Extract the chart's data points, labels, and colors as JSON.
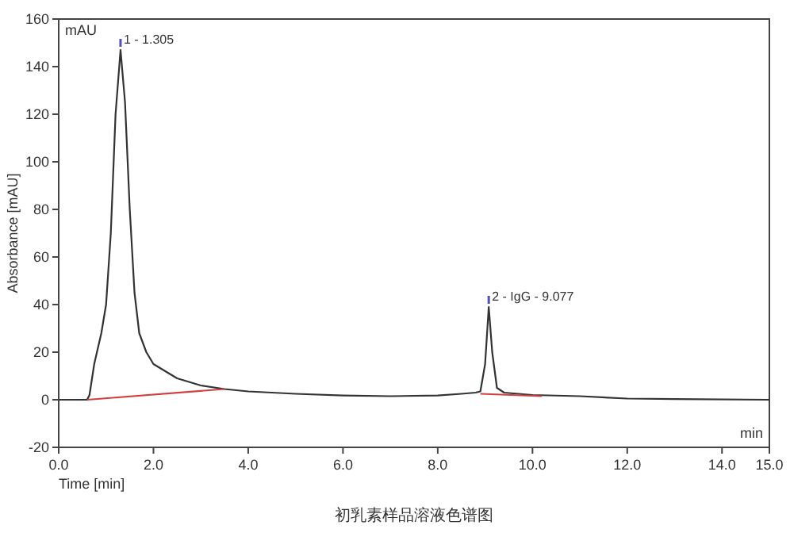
{
  "chart_data": {
    "type": "line",
    "xlabel": "Time [min]",
    "ylabel": "Absorbance [mAU]",
    "xlim": [
      0,
      15
    ],
    "ylim": [
      -20,
      160
    ],
    "xticks": [
      {
        "value": 0,
        "label": "0.0"
      },
      {
        "value": 2,
        "label": "2.0"
      },
      {
        "value": 4,
        "label": "4.0"
      },
      {
        "value": 6,
        "label": "6.0"
      },
      {
        "value": 8,
        "label": "8.0"
      },
      {
        "value": 10,
        "label": "10.0"
      },
      {
        "value": 12,
        "label": "12.0"
      },
      {
        "value": 14,
        "label": "14.0"
      },
      {
        "value": 15,
        "label": "15.0"
      }
    ],
    "yticks": [
      -20,
      0,
      20,
      40,
      60,
      80,
      100,
      120,
      140,
      160
    ],
    "series": [
      {
        "color": "#333333",
        "x": [
          0,
          0.6,
          0.65,
          0.75,
          0.9,
          1.0,
          1.1,
          1.2,
          1.305,
          1.4,
          1.5,
          1.6,
          1.7,
          1.85,
          2.0,
          2.5,
          3.0,
          3.5,
          4.0,
          5.0,
          6.0,
          7.0,
          8.0,
          8.5,
          8.8,
          8.9,
          9.0,
          9.077,
          9.15,
          9.25,
          9.4,
          10.0,
          11.0,
          12.0,
          13.0,
          15.0
        ],
        "values": [
          0,
          0,
          2,
          15,
          28,
          40,
          70,
          120,
          147,
          125,
          80,
          45,
          28,
          20,
          15,
          9,
          6,
          4.5,
          3.5,
          2.5,
          1.8,
          1.5,
          1.8,
          2.5,
          3,
          3.5,
          15,
          39,
          20,
          5,
          3,
          2,
          1.5,
          0.5,
          0.3,
          0
        ]
      },
      {
        "color": "#d04040",
        "x": [
          0.6,
          3.5
        ],
        "values": [
          0,
          4.5
        ]
      },
      {
        "color": "#d04040",
        "x": [
          8.9,
          10.2
        ],
        "values": [
          2.5,
          1.5
        ]
      }
    ],
    "annotations": [
      {
        "text": "1 - 1.305",
        "x": 1.305,
        "y": 147
      },
      {
        "text": "2 - IgG - 9.077",
        "x": 9.077,
        "y": 39
      },
      "mAU",
      "min",
      "初乳素样品溶液色谱图"
    ]
  }
}
